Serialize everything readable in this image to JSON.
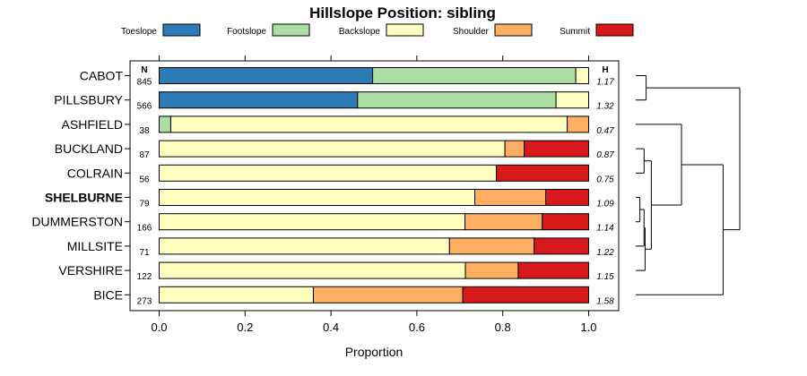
{
  "chart_data": {
    "type": "bar",
    "stacked": true,
    "orientation": "horizontal",
    "title": "Hillslope Position: sibling",
    "xlabel": "Proportion",
    "xlim": [
      0,
      1
    ],
    "xticks": [
      "0.0",
      "0.2",
      "0.4",
      "0.6",
      "0.8",
      "1.0"
    ],
    "n_header": "N",
    "h_header": "H",
    "legend": [
      {
        "name": "Toeslope",
        "color": "#2c7bb6"
      },
      {
        "name": "Footslope",
        "color": "#abdda4"
      },
      {
        "name": "Backslope",
        "color": "#ffffbf"
      },
      {
        "name": "Shoulder",
        "color": "#fdae61"
      },
      {
        "name": "Summit",
        "color": "#d7191c"
      }
    ],
    "rows": [
      {
        "label": "CABOT",
        "bold": false,
        "n": "845",
        "h": "1.17",
        "values": [
          0.497,
          0.473,
          0.03,
          0,
          0
        ]
      },
      {
        "label": "PILLSBURY",
        "bold": false,
        "n": "566",
        "h": "1.32",
        "values": [
          0.462,
          0.462,
          0.076,
          0,
          0
        ]
      },
      {
        "label": "ASHFIELD",
        "bold": false,
        "n": "38",
        "h": "0.47",
        "values": [
          0,
          0.027,
          0.923,
          0.05,
          0
        ]
      },
      {
        "label": "BUCKLAND",
        "bold": false,
        "n": "87",
        "h": "0.87",
        "values": [
          0,
          0,
          0.805,
          0.045,
          0.15
        ]
      },
      {
        "label": "COLRAIN",
        "bold": false,
        "n": "56",
        "h": "0.75",
        "values": [
          0,
          0,
          0.785,
          0,
          0.215
        ]
      },
      {
        "label": "SHELBURNE",
        "bold": true,
        "n": "79",
        "h": "1.09",
        "values": [
          0,
          0,
          0.735,
          0.165,
          0.1
        ]
      },
      {
        "label": "DUMMERSTON",
        "bold": false,
        "n": "166",
        "h": "1.14",
        "values": [
          0,
          0,
          0.712,
          0.18,
          0.108
        ]
      },
      {
        "label": "MILLSITE",
        "bold": false,
        "n": "71",
        "h": "1.22",
        "values": [
          0,
          0,
          0.676,
          0.197,
          0.127
        ]
      },
      {
        "label": "VERSHIRE",
        "bold": false,
        "n": "122",
        "h": "1.15",
        "values": [
          0,
          0,
          0.713,
          0.123,
          0.164
        ]
      },
      {
        "label": "BICE",
        "bold": false,
        "n": "273",
        "h": "1.58",
        "values": [
          0,
          0,
          0.359,
          0.348,
          0.293
        ]
      }
    ],
    "dendrogram": {
      "merge_order": [
        [
          "CABOT",
          "PILLSBURY"
        ],
        [
          "BUCKLAND",
          "COLRAIN"
        ],
        [
          "SHELBURNE",
          "DUMMERSTON"
        ],
        [
          "SHELBURNE-DUMMERSTON",
          "MILLSITE"
        ],
        [
          "SHELBURNE-DUMMERSTON-MILLSITE",
          "VERSHIRE"
        ],
        [
          "BUCKLAND-COLRAIN",
          "SHELBURNE-VERSHIRE"
        ],
        [
          "ASHFIELD",
          "BUCKLAND-VERSHIRE"
        ],
        [
          "ASHFIELD-VERSHIRE",
          "BICE"
        ],
        [
          "CABOT-PILLSBURY",
          "ASHFIELD-BICE"
        ]
      ],
      "heights": [
        0.1,
        0.08,
        0.04,
        0.08,
        0.09,
        0.15,
        0.44,
        0.84,
        1.0
      ]
    }
  }
}
